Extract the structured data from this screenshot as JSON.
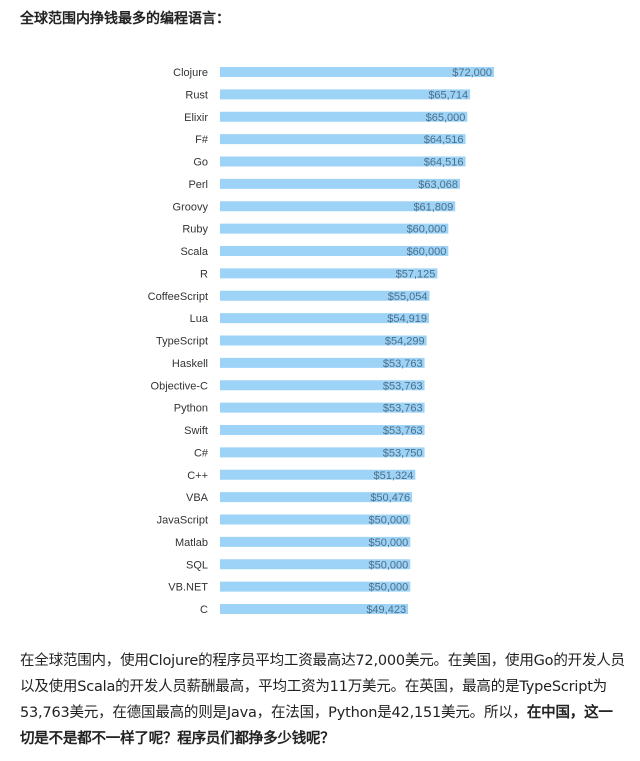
{
  "article": {
    "heading": "全球范围内挣钱最多的编程语言：",
    "paragraph_plain": "在全球范围内，使用Clojure的程序员平均工资最高达72,000美元。在美国，使用Go的开发人员以及使用Scala的开发人员薪酬最高，平均工资为11万美元。在英国，最高的是TypeScript为53,763美元，在德国最高的则是Java，在法国，Python是42,151美元。所以，",
    "paragraph_bold": "在中国，这一切是不是都不一样了呢？程序员们都挣多少钱呢？"
  },
  "chart_data": {
    "type": "bar",
    "orientation": "horizontal",
    "title": "",
    "xlabel": "",
    "ylabel": "",
    "grid": false,
    "bar_color": "#9dd3f7",
    "label_color": "#4d6f88",
    "categories": [
      "Clojure",
      "Rust",
      "Elixir",
      "F#",
      "Go",
      "Perl",
      "Groovy",
      "Ruby",
      "Scala",
      "R",
      "CoffeeScript",
      "Lua",
      "TypeScript",
      "Haskell",
      "Objective-C",
      "Python",
      "Swift",
      "C#",
      "C++",
      "VBA",
      "JavaScript",
      "Matlab",
      "SQL",
      "VB.NET",
      "C"
    ],
    "values": [
      72000,
      65714,
      65000,
      64516,
      64516,
      63068,
      61809,
      60000,
      60000,
      57125,
      55054,
      54919,
      54299,
      53763,
      53763,
      53763,
      53763,
      53750,
      51324,
      50476,
      50000,
      50000,
      50000,
      50000,
      49423
    ],
    "data_labels": [
      "$72,000",
      "$65,714",
      "$65,000",
      "$64,516",
      "$64,516",
      "$63,068",
      "$61,809",
      "$60,000",
      "$60,000",
      "$57,125",
      "$55,054",
      "$54,919",
      "$54,299",
      "$53,763",
      "$53,763",
      "$53,763",
      "$53,763",
      "$53,750",
      "$51,324",
      "$50,476",
      "$50,000",
      "$50,000",
      "$50,000",
      "$50,000",
      "$49,423"
    ]
  }
}
